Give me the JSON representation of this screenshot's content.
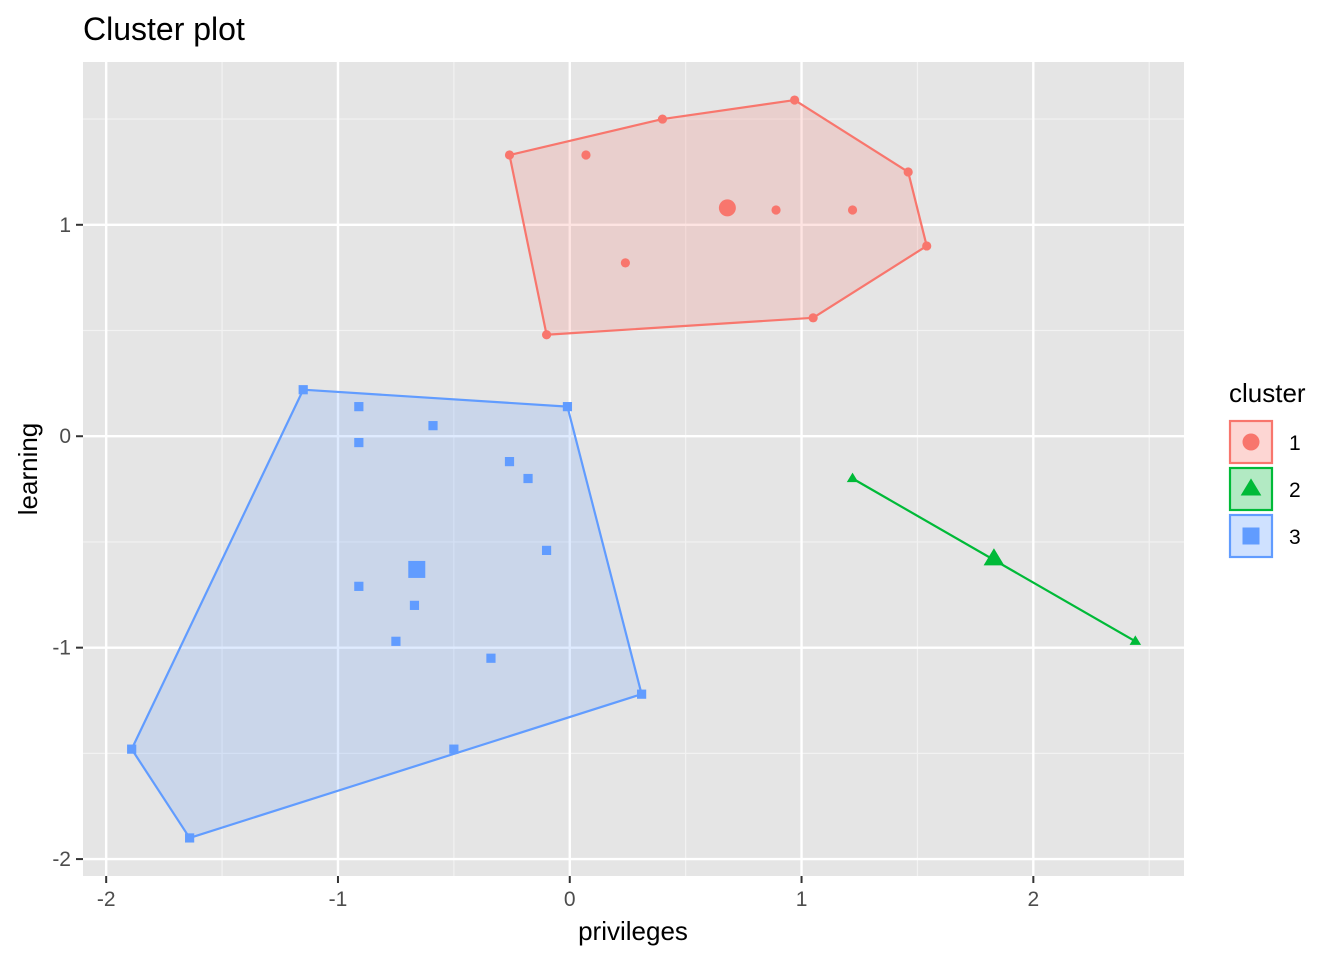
{
  "chart_data": {
    "type": "scatter",
    "title": "Cluster plot",
    "xlabel": "privileges",
    "ylabel": "learning",
    "xlim": [
      -2.1,
      2.65
    ],
    "ylim": [
      -2.08,
      1.77
    ],
    "x_ticks": [
      -2,
      -1,
      0,
      1,
      2
    ],
    "x_tick_labels": [
      "-2",
      "-1",
      "0",
      "1",
      "2"
    ],
    "y_ticks": [
      -2,
      -1,
      0,
      1
    ],
    "y_tick_labels": [
      "-2",
      "-1",
      "0",
      "1"
    ],
    "grid": true,
    "legend": {
      "title": "cluster",
      "position": "right"
    },
    "series": [
      {
        "name": "1",
        "color": "#F8766D",
        "shape": "circle",
        "points": [
          [
            -0.26,
            1.33
          ],
          [
            0.07,
            1.33
          ],
          [
            0.4,
            1.5
          ],
          [
            0.97,
            1.59
          ],
          [
            1.46,
            1.25
          ],
          [
            0.89,
            1.07
          ],
          [
            1.22,
            1.07
          ],
          [
            1.54,
            0.9
          ],
          [
            0.24,
            0.82
          ],
          [
            1.05,
            0.56
          ],
          [
            -0.1,
            0.48
          ]
        ],
        "centroid": [
          0.68,
          1.08
        ],
        "hull": [
          [
            -0.26,
            1.33
          ],
          [
            0.4,
            1.5
          ],
          [
            0.97,
            1.59
          ],
          [
            1.46,
            1.25
          ],
          [
            1.54,
            0.9
          ],
          [
            1.05,
            0.56
          ],
          [
            -0.1,
            0.48
          ]
        ]
      },
      {
        "name": "2",
        "color": "#00BA38",
        "shape": "triangle",
        "points": [
          [
            1.22,
            -0.2
          ],
          [
            2.44,
            -0.97
          ]
        ],
        "centroid": [
          1.83,
          -0.58
        ],
        "hull": [
          [
            1.22,
            -0.2
          ],
          [
            2.44,
            -0.97
          ]
        ]
      },
      {
        "name": "3",
        "color": "#619CFF",
        "shape": "square",
        "points": [
          [
            -1.15,
            0.22
          ],
          [
            -0.91,
            0.14
          ],
          [
            -0.01,
            0.14
          ],
          [
            -0.59,
            0.05
          ],
          [
            -0.91,
            -0.03
          ],
          [
            -0.26,
            -0.12
          ],
          [
            -0.18,
            -0.2
          ],
          [
            -0.1,
            -0.54
          ],
          [
            -0.91,
            -0.71
          ],
          [
            -0.67,
            -0.8
          ],
          [
            -0.75,
            -0.97
          ],
          [
            -0.34,
            -1.05
          ],
          [
            0.31,
            -1.22
          ],
          [
            -1.89,
            -1.48
          ],
          [
            -0.5,
            -1.48
          ],
          [
            -1.64,
            -1.9
          ]
        ],
        "centroid": [
          -0.66,
          -0.63
        ],
        "hull": [
          [
            -1.15,
            0.22
          ],
          [
            -0.01,
            0.14
          ],
          [
            0.31,
            -1.22
          ],
          [
            -1.64,
            -1.9
          ],
          [
            -1.89,
            -1.48
          ]
        ]
      }
    ]
  }
}
